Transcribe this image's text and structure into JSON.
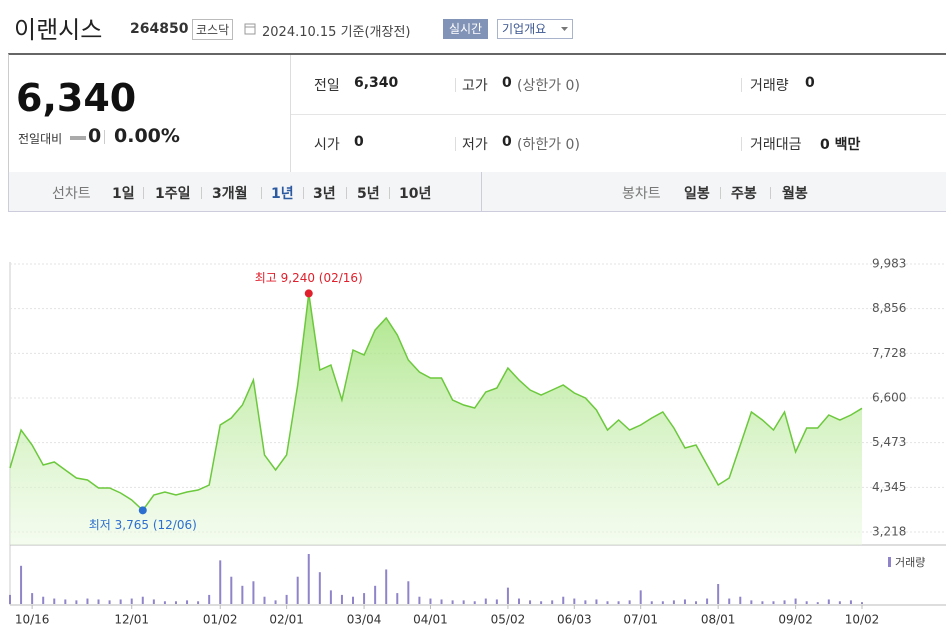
{
  "header": {
    "title": "이랜시스",
    "code": "264850",
    "market": "코스닥",
    "date": "2024.10.15 기준(개장전)",
    "realtime": "실시간",
    "company_info": "기업개요"
  },
  "summary": {
    "price": "6,340",
    "change_label": "전일대비",
    "change": "0",
    "change_rate": "0.00%",
    "items": [
      {
        "label": "전일",
        "value": "6,340"
      },
      {
        "label": "고가",
        "value": "0",
        "note": "(상한가 0)"
      },
      {
        "label": "거래량",
        "value": "0"
      },
      {
        "label": "시가",
        "value": "0"
      },
      {
        "label": "저가",
        "value": "0",
        "note": "(하한가 0)"
      },
      {
        "label": "거래대금",
        "value": "0 백만"
      }
    ]
  },
  "tabs": {
    "line_label": "선차트",
    "line_periods": [
      "1일",
      "1주일",
      "3개월",
      "1년",
      "3년",
      "5년",
      "10년"
    ],
    "candle_label": "봉차트",
    "candle_periods": [
      "일봉",
      "주봉",
      "월봉"
    ]
  },
  "chart_data": {
    "type": "line",
    "color": "#6cc83c",
    "categories": [
      null,
      null,
      "10/16",
      null,
      null,
      null,
      null,
      null,
      null,
      null,
      null,
      "12/01",
      null,
      null,
      null,
      null,
      null,
      null,
      null,
      "01/02",
      null,
      null,
      null,
      null,
      null,
      "02/01",
      null,
      null,
      null,
      null,
      null,
      null,
      "03/04",
      null,
      null,
      null,
      null,
      null,
      "04/01",
      null,
      null,
      null,
      null,
      null,
      null,
      "05/02",
      null,
      null,
      null,
      null,
      null,
      "06/03",
      null,
      null,
      null,
      null,
      null,
      "07/01",
      null,
      null,
      null,
      null,
      null,
      null,
      "08/01",
      null,
      null,
      null,
      null,
      null,
      null,
      "09/02",
      null,
      null,
      null,
      null,
      null,
      "10/02"
    ],
    "values": [
      4834,
      5793,
      5415,
      4910,
      4985,
      4784,
      4582,
      4531,
      4329,
      4329,
      4203,
      4026,
      3765,
      4153,
      4228,
      4153,
      4228,
      4279,
      4405,
      5919,
      6096,
      6424,
      7055,
      5162,
      4784,
      5162,
      6929,
      9240,
      7308,
      7434,
      6550,
      7812,
      7686,
      8317,
      8620,
      8191,
      7560,
      7257,
      7106,
      7106,
      6550,
      6424,
      6348,
      6752,
      6853,
      7358,
      7055,
      6803,
      6677,
      6803,
      6929,
      6727,
      6601,
      6298,
      5793,
      6046,
      5793,
      5919,
      6096,
      6247,
      5844,
      5339,
      5415,
      4910,
      4405,
      4582,
      5415,
      6247,
      6046,
      5793,
      6247,
      5238,
      5844,
      5844,
      6172,
      6046,
      6172,
      6340
    ],
    "ylim": [
      3218,
      9983
    ],
    "yticks": [
      {
        "value": 3218,
        "label": "3,218"
      },
      {
        "value": 4345,
        "label": "4,345"
      },
      {
        "value": 5473,
        "label": "5,473"
      },
      {
        "value": 6600,
        "label": "6,600"
      },
      {
        "value": 7728,
        "label": "7,728"
      },
      {
        "value": 8856,
        "label": "8,856"
      },
      {
        "value": 9983,
        "label": "9,983"
      }
    ],
    "grid": true,
    "annotations": {
      "high": {
        "text": "최고 9,240 (02/16)",
        "color": "#e0202c"
      },
      "low": {
        "text": "최저 3,765 (12/06)",
        "color": "#2d6fd0"
      }
    },
    "volume": {
      "name": "거래량",
      "color": "#8f84c9",
      "values": [
        10,
        42,
        12,
        8,
        6,
        5,
        4,
        6,
        5,
        4,
        5,
        6,
        8,
        5,
        3,
        3,
        4,
        3,
        10,
        48,
        30,
        20,
        25,
        8,
        4,
        10,
        30,
        55,
        35,
        15,
        10,
        8,
        12,
        20,
        38,
        12,
        25,
        8,
        6,
        5,
        4,
        4,
        3,
        6,
        5,
        18,
        6,
        4,
        3,
        4,
        8,
        6,
        4,
        5,
        3,
        3,
        4,
        15,
        3,
        3,
        4,
        5,
        3,
        6,
        22,
        6,
        8,
        4,
        3,
        3,
        4,
        6,
        3,
        2,
        5,
        3,
        4,
        2
      ]
    }
  }
}
